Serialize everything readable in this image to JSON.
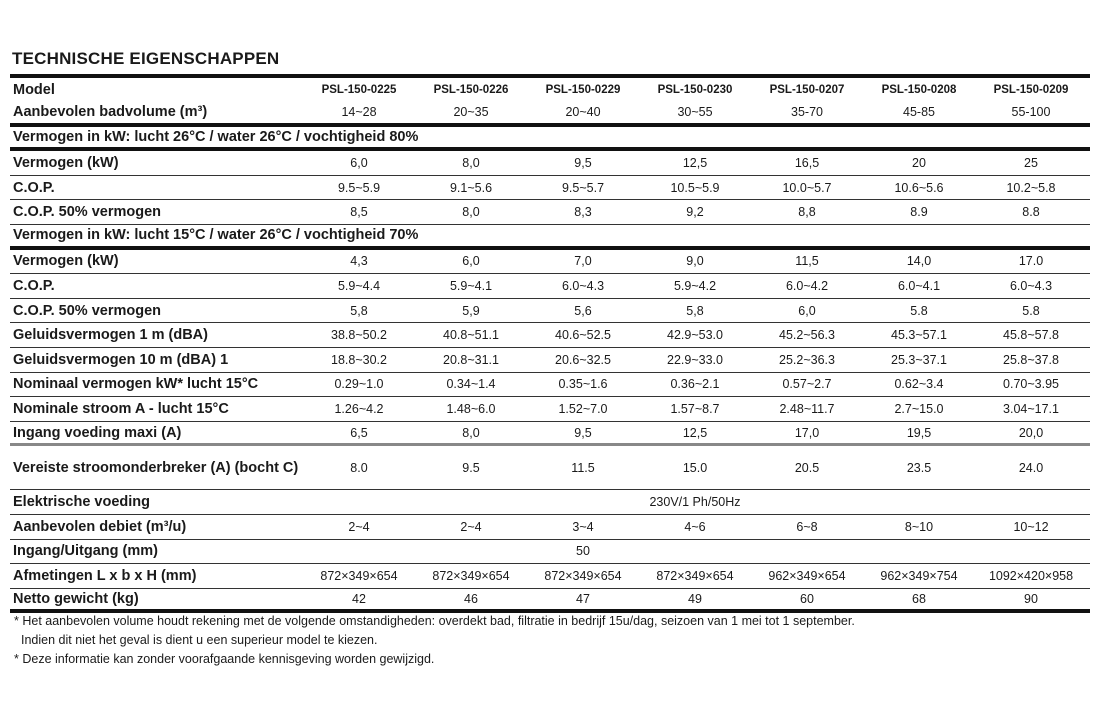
{
  "title": "TECHNISCHE EIGENSCHAPPEN",
  "header": {
    "label": "Model",
    "models": [
      "PSL-150-0225",
      "PSL-150-0226",
      "PSL-150-0229",
      "PSL-150-0230",
      "PSL-150-0207",
      "PSL-150-0208",
      "PSL-150-0209"
    ]
  },
  "rows": [
    {
      "label": "Aanbevolen badvolume (m³)",
      "values": [
        "14~28",
        "20~35",
        "20~40",
        "30~55",
        "35-70",
        "45-85",
        "55-100"
      ],
      "border": "thick"
    },
    {
      "section": "Vermogen in kW: lucht 26°C / water 26°C / vochtigheid 80%",
      "border": "thick"
    },
    {
      "label": "Vermogen (kW)",
      "values": [
        "6,0",
        "8,0",
        "9,5",
        "12,5",
        "16,5",
        "20",
        "25"
      ]
    },
    {
      "label": "C.O.P.",
      "values": [
        "9.5~5.9",
        "9.1~5.6",
        "9.5~5.7",
        "10.5~5.9",
        "10.0~5.7",
        "10.6~5.6",
        "10.2~5.8"
      ]
    },
    {
      "label": "C.O.P. 50% vermogen",
      "values": [
        "8,5",
        "8,0",
        "8,3",
        "9,2",
        "8,8",
        "8.9",
        "8.8"
      ]
    },
    {
      "section": "Vermogen in kW: lucht 15°C / water 26°C / vochtigheid 70%",
      "border": "thick"
    },
    {
      "label": "Vermogen (kW)",
      "values": [
        "4,3",
        "6,0",
        "7,0",
        "9,0",
        "11,5",
        "14,0",
        "17.0"
      ]
    },
    {
      "label": "C.O.P.",
      "values": [
        "5.9~4.4",
        "5.9~4.1",
        "6.0~4.3",
        "5.9~4.2",
        "6.0~4.2",
        "6.0~4.1",
        "6.0~4.3"
      ]
    },
    {
      "label": "C.O.P. 50% vermogen",
      "values": [
        "5,8",
        "5,9",
        "5,6",
        "5,8",
        "6,0",
        "5.8",
        "5.8"
      ]
    },
    {
      "label": "Geluidsvermogen 1 m (dBA)",
      "values": [
        "38.8~50.2",
        "40.8~51.1",
        "40.6~52.5",
        "42.9~53.0",
        "45.2~56.3",
        "45.3~57.1",
        "45.8~57.8"
      ]
    },
    {
      "label": "Geluidsvermogen 10 m (dBA) 1",
      "values": [
        "18.8~30.2",
        "20.8~31.1",
        "20.6~32.5",
        "22.9~33.0",
        "25.2~36.3",
        "25.3~37.1",
        "25.8~37.8"
      ]
    },
    {
      "label": "Nominaal vermogen kW* lucht 15°C",
      "values": [
        "0.29~1.0",
        "0.34~1.4",
        "0.35~1.6",
        "0.36~2.1",
        "0.57~2.7",
        "0.62~3.4",
        "0.70~3.95"
      ]
    },
    {
      "label": "Nominale stroom A - lucht 15°C",
      "values": [
        "1.26~4.2",
        "1.48~6.0",
        "1.52~7.0",
        "1.57~8.7",
        "2.48~11.7",
        "2.7~15.0",
        "3.04~17.1"
      ]
    },
    {
      "label": "Ingang voeding maxi (A)",
      "values": [
        "6,5",
        "8,0",
        "9,5",
        "12,5",
        "17,0",
        "19,5",
        "20,0"
      ],
      "border": "gray"
    },
    {
      "label": "Vereiste stroomonderbreker (A) (bocht C)",
      "values": [
        "8.0",
        "9.5",
        "11.5",
        "15.0",
        "20.5",
        "23.5",
        "24.0"
      ],
      "tall": true
    },
    {
      "label": "Elektrische voeding",
      "merged": "230V/1 Ph/50Hz",
      "mergedAlign": "center-all"
    },
    {
      "label": "Aanbevolen debiet (m³/u)",
      "values": [
        "2~4",
        "2~4",
        "3~4",
        "4~6",
        "6~8",
        "8~10",
        "10~12"
      ]
    },
    {
      "label": "Ingang/Uitgang (mm)",
      "merged": "50",
      "mergedAlign": "col3"
    },
    {
      "label": "Afmetingen L x b x H (mm)",
      "values": [
        "872×349×654",
        "872×349×654",
        "872×349×654",
        "872×349×654",
        "962×349×654",
        "962×349×754",
        "1092×420×958"
      ]
    },
    {
      "label": "Netto gewicht (kg)",
      "values": [
        "42",
        "46",
        "47",
        "49",
        "60",
        "68",
        "90"
      ],
      "border": "thick"
    }
  ],
  "notes": [
    "* Het aanbevolen volume houdt rekening met de volgende omstandigheden: overdekt bad, filtratie in bedrijf 15u/dag, seizoen van 1 mei tot 1 september.",
    "  Indien dit niet het geval is dient u een superieur model te kiezen.",
    "* Deze informatie kan zonder voorafgaande kennisgeving worden gewijzigd."
  ]
}
